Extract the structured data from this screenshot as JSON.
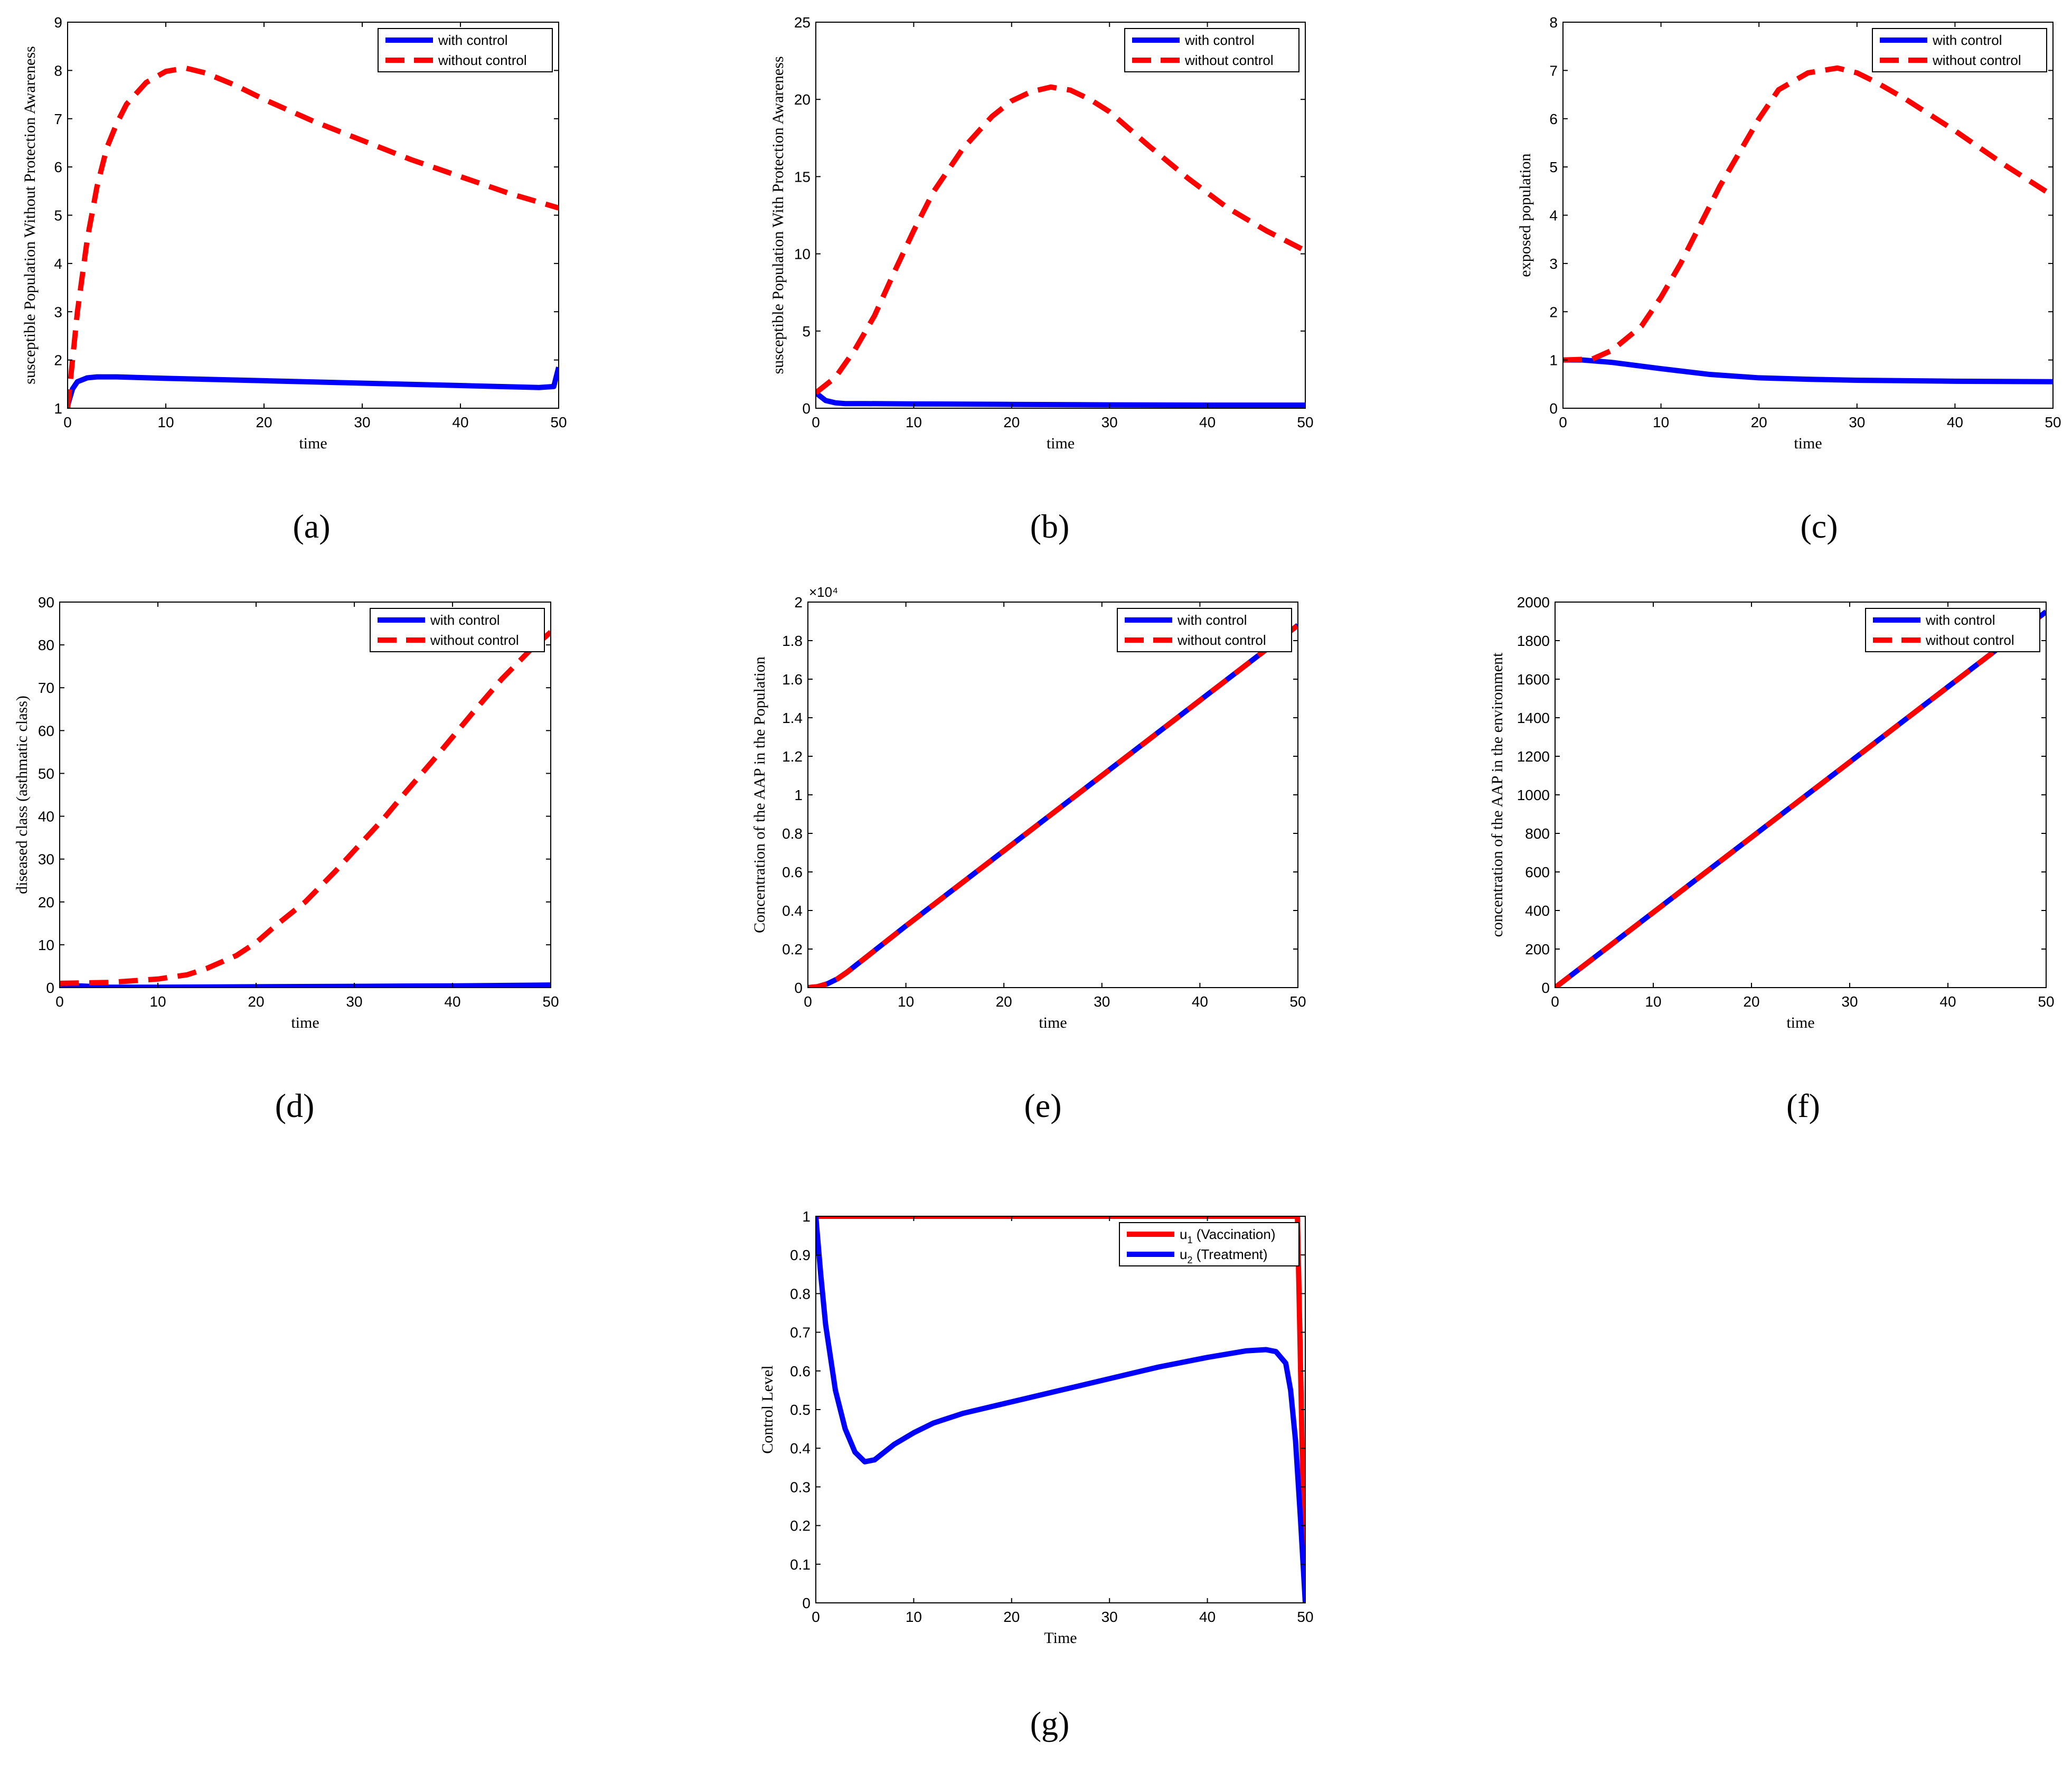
{
  "colors": {
    "with_control": "#0000ff",
    "without_control": "#ff0000",
    "axis": "#000000"
  },
  "chart_data": [
    {
      "panel": "a",
      "caption": "(a)",
      "type": "line",
      "xlabel": "time",
      "ylabel": "susceptible Population Without Protection Awareness",
      "xlim": [
        0,
        50
      ],
      "ylim": [
        1,
        9
      ],
      "xticks": [
        0,
        10,
        20,
        30,
        40,
        50
      ],
      "yticks": [
        1,
        2,
        3,
        4,
        5,
        6,
        7,
        8,
        9
      ],
      "legend": "top-right",
      "series": [
        {
          "name": "with control",
          "style": "solid",
          "x": [
            0,
            0.5,
            1,
            2,
            3,
            5,
            10,
            20,
            30,
            40,
            48,
            49.5,
            50
          ],
          "y": [
            1.05,
            1.4,
            1.55,
            1.63,
            1.65,
            1.65,
            1.62,
            1.57,
            1.52,
            1.47,
            1.43,
            1.45,
            1.85
          ]
        },
        {
          "name": "without control",
          "style": "dashed",
          "x": [
            0,
            1,
            2,
            3,
            4,
            5,
            6,
            8,
            10,
            12,
            14,
            17,
            20,
            25,
            30,
            35,
            40,
            45,
            50
          ],
          "y": [
            1.0,
            3.0,
            4.5,
            5.6,
            6.4,
            6.9,
            7.3,
            7.75,
            7.98,
            8.05,
            7.95,
            7.7,
            7.4,
            6.95,
            6.55,
            6.15,
            5.8,
            5.45,
            5.15
          ]
        }
      ]
    },
    {
      "panel": "b",
      "caption": "(b)",
      "type": "line",
      "xlabel": "time",
      "ylabel": "susceptible Population With Protection Awareness",
      "xlim": [
        0,
        50
      ],
      "ylim": [
        0,
        25
      ],
      "xticks": [
        0,
        10,
        20,
        30,
        40,
        50
      ],
      "yticks": [
        0,
        5,
        10,
        15,
        20,
        25
      ],
      "legend": "top-right",
      "series": [
        {
          "name": "with control",
          "style": "solid",
          "x": [
            0,
            1,
            2,
            3,
            5,
            10,
            20,
            30,
            40,
            50
          ],
          "y": [
            1.0,
            0.5,
            0.35,
            0.3,
            0.3,
            0.28,
            0.25,
            0.22,
            0.2,
            0.2
          ]
        },
        {
          "name": "without control",
          "style": "dashed",
          "x": [
            0,
            2,
            4,
            6,
            8,
            10,
            12,
            15,
            18,
            20,
            22,
            24,
            26,
            28,
            30,
            34,
            38,
            42,
            46,
            50
          ],
          "y": [
            1.0,
            2.0,
            3.8,
            6.0,
            8.8,
            11.5,
            14.0,
            16.8,
            18.9,
            19.9,
            20.5,
            20.8,
            20.6,
            20.0,
            19.2,
            17.0,
            14.9,
            13.0,
            11.5,
            10.2
          ]
        }
      ]
    },
    {
      "panel": "c",
      "caption": "(c)",
      "type": "line",
      "xlabel": "time",
      "ylabel": "exposed population",
      "xlim": [
        0,
        50
      ],
      "ylim": [
        0,
        8
      ],
      "xticks": [
        0,
        10,
        20,
        30,
        40,
        50
      ],
      "yticks": [
        0,
        1,
        2,
        3,
        4,
        5,
        6,
        7,
        8
      ],
      "legend": "top-right",
      "series": [
        {
          "name": "with control",
          "style": "solid",
          "x": [
            0,
            2,
            5,
            10,
            15,
            20,
            25,
            30,
            40,
            50
          ],
          "y": [
            1.0,
            1.0,
            0.95,
            0.82,
            0.7,
            0.63,
            0.6,
            0.58,
            0.56,
            0.55
          ]
        },
        {
          "name": "without control",
          "style": "dashed",
          "x": [
            0,
            3,
            5,
            8,
            10,
            12,
            14,
            16,
            18,
            20,
            22,
            25,
            28,
            30,
            32,
            35,
            40,
            45,
            50
          ],
          "y": [
            1.0,
            1.02,
            1.2,
            1.7,
            2.3,
            3.0,
            3.8,
            4.6,
            5.3,
            6.0,
            6.6,
            6.95,
            7.05,
            6.95,
            6.75,
            6.4,
            5.75,
            5.05,
            4.4
          ]
        }
      ]
    },
    {
      "panel": "d",
      "caption": "(d)",
      "type": "line",
      "xlabel": "time",
      "ylabel": "diseased class (asthmatic class)",
      "xlim": [
        0,
        50
      ],
      "ylim": [
        0,
        90
      ],
      "xticks": [
        0,
        10,
        20,
        30,
        40,
        50
      ],
      "yticks": [
        0,
        10,
        20,
        30,
        40,
        50,
        60,
        70,
        80,
        90
      ],
      "legend": "top-right",
      "series": [
        {
          "name": "with control",
          "style": "solid",
          "x": [
            0,
            2,
            5,
            10,
            20,
            30,
            40,
            50
          ],
          "y": [
            0.8,
            0.4,
            0.1,
            0.1,
            0.2,
            0.3,
            0.4,
            0.6
          ]
        },
        {
          "name": "without control",
          "style": "dashed",
          "x": [
            0,
            5,
            10,
            13,
            15,
            18,
            20,
            22,
            25,
            28,
            30,
            33,
            35,
            38,
            40,
            42,
            45,
            48,
            50
          ],
          "y": [
            1.0,
            1.2,
            2.0,
            3.0,
            4.5,
            7.5,
            10.5,
            14.5,
            20.0,
            27.0,
            32.0,
            39.5,
            45.0,
            53.0,
            58.5,
            64.0,
            72.0,
            79.0,
            83.0
          ]
        }
      ]
    },
    {
      "panel": "e",
      "caption": "(e)",
      "type": "line",
      "xlabel": "time",
      "ylabel": "Concentration of the AAP in the Population",
      "xlim": [
        0,
        50
      ],
      "ylim": [
        0,
        2
      ],
      "yscale_label": "×10⁴",
      "xticks": [
        0,
        10,
        20,
        30,
        40,
        50
      ],
      "yticks": [
        0,
        0.2,
        0.4,
        0.6,
        0.8,
        1,
        1.2,
        1.4,
        1.6,
        1.8,
        2
      ],
      "legend": "top-right",
      "series": [
        {
          "name": "with control",
          "style": "solid",
          "x": [
            0,
            1,
            2,
            3,
            4,
            5,
            10,
            20,
            30,
            40,
            50
          ],
          "y": [
            0,
            0.005,
            0.02,
            0.045,
            0.08,
            0.12,
            0.32,
            0.71,
            1.1,
            1.49,
            1.88
          ]
        },
        {
          "name": "without control",
          "style": "dashed",
          "x": [
            0,
            1,
            2,
            3,
            4,
            5,
            10,
            20,
            30,
            40,
            50
          ],
          "y": [
            0,
            0.005,
            0.02,
            0.045,
            0.08,
            0.12,
            0.32,
            0.71,
            1.1,
            1.49,
            1.88
          ]
        }
      ]
    },
    {
      "panel": "f",
      "caption": "(f)",
      "type": "line",
      "xlabel": "time",
      "ylabel": "concentration of the AAP in the environment",
      "xlim": [
        0,
        50
      ],
      "ylim": [
        0,
        2000
      ],
      "xticks": [
        0,
        10,
        20,
        30,
        40,
        50
      ],
      "yticks": [
        0,
        200,
        400,
        600,
        800,
        1000,
        1200,
        1400,
        1600,
        1800,
        2000
      ],
      "legend": "top-right",
      "series": [
        {
          "name": "with control",
          "style": "solid",
          "x": [
            0,
            10,
            20,
            30,
            40,
            50
          ],
          "y": [
            0,
            390,
            780,
            1170,
            1560,
            1950
          ]
        },
        {
          "name": "without control",
          "style": "dashed",
          "x": [
            0,
            10,
            20,
            30,
            40,
            50
          ],
          "y": [
            0,
            390,
            780,
            1170,
            1560,
            1950
          ]
        }
      ]
    },
    {
      "panel": "g",
      "caption": "(g)",
      "type": "line",
      "xlabel": "Time",
      "ylabel": "Control Level",
      "xlim": [
        0,
        50
      ],
      "ylim": [
        0,
        1
      ],
      "xticks": [
        0,
        10,
        20,
        30,
        40,
        50
      ],
      "yticks": [
        0,
        0.1,
        0.2,
        0.3,
        0.4,
        0.5,
        0.6,
        0.7,
        0.8,
        0.9,
        1
      ],
      "legend": "top-right",
      "series": [
        {
          "name": "u1 (Vaccination)",
          "legend_base": "u",
          "legend_sub": "1",
          "legend_rest": " (Vaccination)",
          "color": "#ff0000",
          "style": "solid",
          "x": [
            0,
            49.2,
            49.6,
            50
          ],
          "y": [
            1,
            1,
            0.5,
            0
          ]
        },
        {
          "name": "u2 (Treatment)",
          "legend_base": "u",
          "legend_sub": "2",
          "legend_rest": " (Treatment)",
          "color": "#0000ff",
          "style": "solid",
          "x": [
            0,
            0.5,
            1,
            2,
            3,
            4,
            5,
            6,
            8,
            10,
            12,
            15,
            20,
            25,
            30,
            35,
            40,
            44,
            46,
            47,
            48,
            48.5,
            49,
            49.5,
            50
          ],
          "y": [
            1.0,
            0.85,
            0.72,
            0.55,
            0.45,
            0.39,
            0.365,
            0.37,
            0.41,
            0.44,
            0.465,
            0.49,
            0.52,
            0.55,
            0.58,
            0.61,
            0.635,
            0.652,
            0.655,
            0.65,
            0.62,
            0.55,
            0.42,
            0.22,
            0
          ]
        }
      ]
    }
  ]
}
